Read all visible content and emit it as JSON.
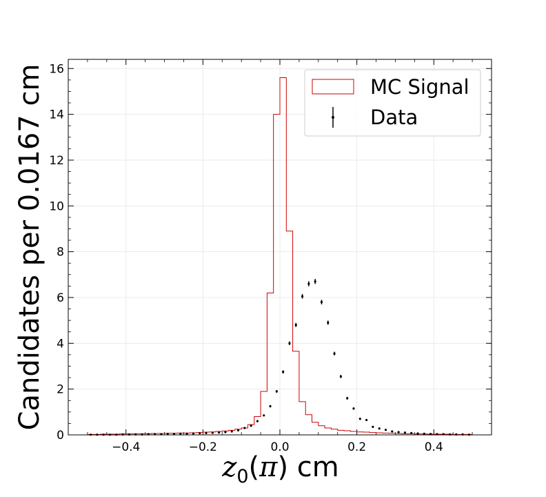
{
  "chart_data": {
    "type": "histogram",
    "title": "",
    "xlabel_var": "z",
    "xlabel_sub": "0",
    "xlabel_particle": "π",
    "xlabel_unit": "cm",
    "ylabel": "Candidates per 0.0167 cm",
    "xlim": [
      -0.55,
      0.55
    ],
    "ylim": [
      0,
      16.4
    ],
    "xticks": [
      -0.4,
      -0.2,
      0.0,
      0.2,
      0.4
    ],
    "xtick_labels": [
      "−0.4",
      "−0.2",
      "0.0",
      "0.2",
      "0.4"
    ],
    "yticks": [
      0,
      2,
      4,
      6,
      8,
      10,
      12,
      14,
      16
    ],
    "ytick_labels": [
      "0",
      "2",
      "4",
      "6",
      "8",
      "10",
      "12",
      "14",
      "16"
    ],
    "grid": true,
    "legend_position": "top-right",
    "bin_edges": [
      -0.5,
      -0.4833,
      -0.4667,
      -0.45,
      -0.4333,
      -0.4167,
      -0.4,
      -0.3833,
      -0.3667,
      -0.35,
      -0.3333,
      -0.3167,
      -0.3,
      -0.2833,
      -0.2667,
      -0.25,
      -0.2333,
      -0.2167,
      -0.2,
      -0.1833,
      -0.1667,
      -0.15,
      -0.1333,
      -0.1167,
      -0.1,
      -0.0833,
      -0.0667,
      -0.05,
      -0.0333,
      -0.0167,
      0.0,
      0.0167,
      0.0333,
      0.05,
      0.0667,
      0.0833,
      0.1,
      0.1167,
      0.1333,
      0.15,
      0.1667,
      0.1833,
      0.2,
      0.2167,
      0.2333,
      0.25,
      0.2667,
      0.2833,
      0.3,
      0.3167,
      0.3333,
      0.35,
      0.3667,
      0.3833,
      0.4,
      0.4167,
      0.4333,
      0.45,
      0.4667,
      0.4833,
      0.5
    ],
    "series": [
      {
        "name": "MC Signal",
        "kind": "step",
        "color": "#cc0000",
        "values": [
          0.02,
          0.02,
          0.03,
          0.03,
          0.03,
          0.04,
          0.04,
          0.05,
          0.05,
          0.05,
          0.06,
          0.06,
          0.07,
          0.07,
          0.08,
          0.08,
          0.09,
          0.1,
          0.12,
          0.13,
          0.15,
          0.17,
          0.2,
          0.25,
          0.3,
          0.45,
          0.8,
          1.9,
          6.2,
          14.0,
          15.6,
          8.9,
          3.65,
          1.45,
          0.88,
          0.55,
          0.4,
          0.3,
          0.25,
          0.2,
          0.18,
          0.15,
          0.13,
          0.12,
          0.1,
          0.09,
          0.08,
          0.07,
          0.06,
          0.05,
          0.05,
          0.04,
          0.04,
          0.03,
          0.03,
          0.03,
          0.03,
          0.02,
          0.02,
          0.02
        ]
      },
      {
        "name": "Data",
        "kind": "points",
        "color": "#000000",
        "values": [
          0.01,
          0.01,
          0.01,
          0.01,
          0.01,
          0.02,
          0.02,
          0.02,
          0.02,
          0.03,
          0.03,
          0.03,
          0.04,
          0.04,
          0.05,
          0.05,
          0.06,
          0.07,
          0.08,
          0.09,
          0.1,
          0.12,
          0.15,
          0.2,
          0.3,
          0.4,
          0.6,
          0.85,
          1.25,
          1.9,
          2.75,
          4.0,
          4.8,
          6.05,
          6.6,
          6.7,
          5.8,
          4.9,
          3.55,
          2.55,
          1.6,
          1.15,
          0.7,
          0.65,
          0.35,
          0.28,
          0.22,
          0.15,
          0.12,
          0.1,
          0.08,
          0.06,
          0.05,
          0.04,
          0.03,
          0.03,
          0.02,
          0.02,
          0.02,
          0.01
        ],
        "errors": [
          0.01,
          0.01,
          0.01,
          0.01,
          0.01,
          0.01,
          0.01,
          0.01,
          0.01,
          0.01,
          0.01,
          0.01,
          0.01,
          0.01,
          0.01,
          0.01,
          0.01,
          0.01,
          0.01,
          0.01,
          0.02,
          0.02,
          0.02,
          0.02,
          0.03,
          0.03,
          0.04,
          0.04,
          0.05,
          0.06,
          0.07,
          0.08,
          0.09,
          0.1,
          0.11,
          0.11,
          0.1,
          0.09,
          0.08,
          0.07,
          0.06,
          0.05,
          0.04,
          0.04,
          0.03,
          0.03,
          0.02,
          0.02,
          0.02,
          0.02,
          0.01,
          0.01,
          0.01,
          0.01,
          0.01,
          0.01,
          0.01,
          0.01,
          0.01,
          0.01
        ]
      }
    ]
  }
}
